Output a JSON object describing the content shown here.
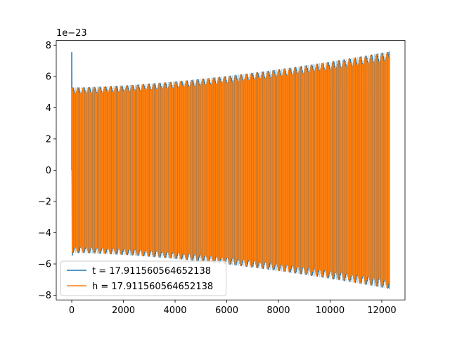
{
  "chart_data": {
    "type": "line",
    "title": "",
    "xlabel": "",
    "ylabel": "",
    "offset_text": "1e−23",
    "xlim": [
      -600,
      12900
    ],
    "ylim": [
      -8.3,
      8.3
    ],
    "y_scale_exponent": -23,
    "xticks": [
      0,
      2000,
      4000,
      6000,
      8000,
      10000,
      12000
    ],
    "xtick_labels": [
      "0",
      "2000",
      "4000",
      "6000",
      "8000",
      "10000",
      "12000"
    ],
    "yticks": [
      -8,
      -6,
      -4,
      -2,
      0,
      2,
      4,
      6,
      8
    ],
    "ytick_labels": [
      "−8",
      "−6",
      "−4",
      "−2",
      "0",
      "2",
      "4",
      "6",
      "8"
    ],
    "grid": false,
    "legend_position": "lower-left",
    "series": [
      {
        "name": "t = 17.911560564652138",
        "color": "#1f77b4",
        "x_start": 0,
        "x_end": 12300,
        "envelope_start": 5.3,
        "envelope_end": 7.6,
        "initial_spike": 7.55,
        "initial_dip": -5.45
      },
      {
        "name": "h = 17.911560564652138",
        "color": "#ff7f0e",
        "x_start": 0,
        "x_end": 12300,
        "envelope_start": 5.3,
        "envelope_end": 7.6
      }
    ]
  }
}
